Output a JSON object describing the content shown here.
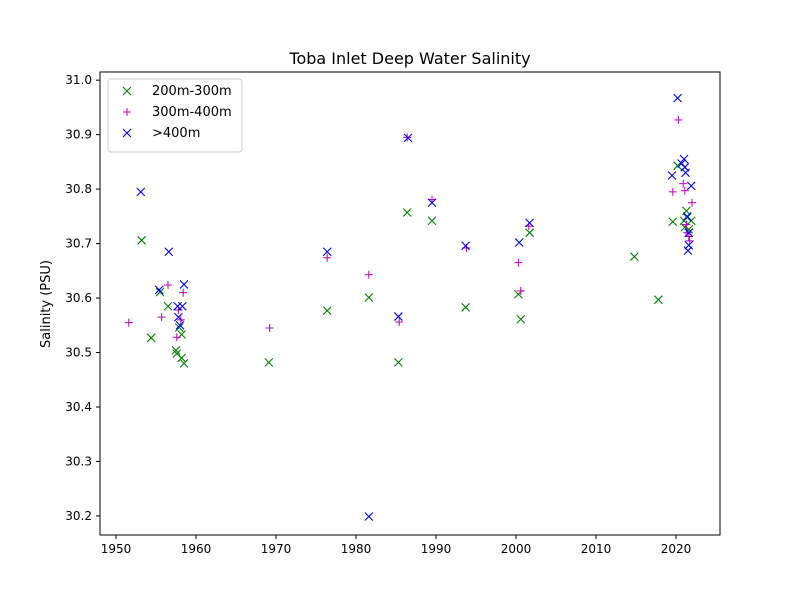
{
  "chart_data": {
    "type": "scatter",
    "title": "Toba Inlet Deep Water Salinity",
    "xlabel": "",
    "ylabel": "Salinity (PSU)",
    "xlim": [
      1948.0,
      2025.5
    ],
    "ylim": [
      30.165,
      31.015
    ],
    "xticks": [
      1950,
      1960,
      1970,
      1980,
      1990,
      2000,
      2010,
      2020
    ],
    "yticks": [
      30.2,
      30.3,
      30.4,
      30.5,
      30.6,
      30.7,
      30.8,
      30.9,
      31.0
    ],
    "xtick_labels": [
      "1950",
      "1960",
      "1970",
      "1980",
      "1990",
      "2000",
      "2010",
      "2020"
    ],
    "ytick_labels": [
      "30.2",
      "30.3",
      "30.4",
      "30.5",
      "30.6",
      "30.7",
      "30.8",
      "30.9",
      "31.0"
    ],
    "grid": false,
    "legend_position": "upper-left",
    "series": [
      {
        "name": "200m-300m",
        "color": "#008000",
        "marker": "x",
        "points": [
          [
            1953.2,
            30.706
          ],
          [
            1954.4,
            30.527
          ],
          [
            1955.5,
            30.611
          ],
          [
            1956.5,
            30.585
          ],
          [
            1957.5,
            30.504
          ],
          [
            1957.6,
            30.498
          ],
          [
            1957.9,
            30.546
          ],
          [
            1958.2,
            30.533
          ],
          [
            1958.2,
            30.49
          ],
          [
            1958.5,
            30.48
          ],
          [
            1969.1,
            30.482
          ],
          [
            1976.4,
            30.577
          ],
          [
            1981.6,
            30.601
          ],
          [
            1985.3,
            30.482
          ],
          [
            1986.4,
            30.757
          ],
          [
            1989.5,
            30.742
          ],
          [
            1993.7,
            30.583
          ],
          [
            2000.3,
            30.607
          ],
          [
            2000.6,
            30.561
          ],
          [
            2001.7,
            30.72
          ],
          [
            2014.8,
            30.676
          ],
          [
            2017.8,
            30.597
          ],
          [
            2019.6,
            30.74
          ],
          [
            2020.2,
            30.843
          ],
          [
            2021.0,
            30.742
          ],
          [
            2021.1,
            30.73
          ],
          [
            2021.3,
            30.76
          ],
          [
            2021.4,
            30.748
          ],
          [
            2021.6,
            30.726
          ],
          [
            2021.9,
            30.742
          ]
        ]
      },
      {
        "name": "300m-400m",
        "color": "#bf00bf",
        "marker": "+",
        "points": [
          [
            1951.6,
            30.555
          ],
          [
            1955.7,
            30.565
          ],
          [
            1956.5,
            30.624
          ],
          [
            1957.6,
            30.528
          ],
          [
            1957.8,
            30.578
          ],
          [
            1958.1,
            30.56
          ],
          [
            1958.4,
            30.61
          ],
          [
            1969.2,
            30.545
          ],
          [
            1976.4,
            30.674
          ],
          [
            1981.6,
            30.643
          ],
          [
            1985.4,
            30.556
          ],
          [
            1986.4,
            30.895
          ],
          [
            1989.5,
            30.781
          ],
          [
            1993.8,
            30.692
          ],
          [
            2000.3,
            30.665
          ],
          [
            2000.6,
            30.613
          ],
          [
            2001.6,
            30.732
          ],
          [
            2019.6,
            30.795
          ],
          [
            2020.3,
            30.927
          ],
          [
            2020.9,
            30.81
          ],
          [
            2021.1,
            30.797
          ],
          [
            2021.3,
            30.735
          ],
          [
            2021.4,
            30.72
          ],
          [
            2021.6,
            30.713
          ],
          [
            2021.7,
            30.705
          ],
          [
            2022.0,
            30.775
          ]
        ]
      },
      {
        "name": ">400m",
        "color": "#0000ff",
        "marker": "x",
        "points": [
          [
            1953.1,
            30.795
          ],
          [
            1955.4,
            30.615
          ],
          [
            1956.6,
            30.685
          ],
          [
            1957.7,
            30.585
          ],
          [
            1957.8,
            30.565
          ],
          [
            1958.0,
            30.55
          ],
          [
            1958.3,
            30.585
          ],
          [
            1958.5,
            30.625
          ],
          [
            1976.4,
            30.685
          ],
          [
            1981.6,
            30.199
          ],
          [
            1985.3,
            30.566
          ],
          [
            1986.5,
            30.894
          ],
          [
            1989.5,
            30.775
          ],
          [
            1993.7,
            30.696
          ],
          [
            2000.4,
            30.702
          ],
          [
            2001.7,
            30.738
          ],
          [
            2019.5,
            30.825
          ],
          [
            2020.2,
            30.967
          ],
          [
            2020.7,
            30.847
          ],
          [
            2021.0,
            30.855
          ],
          [
            2021.1,
            30.84
          ],
          [
            2021.2,
            30.83
          ],
          [
            2021.4,
            30.75
          ],
          [
            2021.6,
            30.72
          ],
          [
            2021.6,
            30.697
          ],
          [
            2021.5,
            30.687
          ],
          [
            2021.9,
            30.806
          ]
        ]
      }
    ]
  }
}
